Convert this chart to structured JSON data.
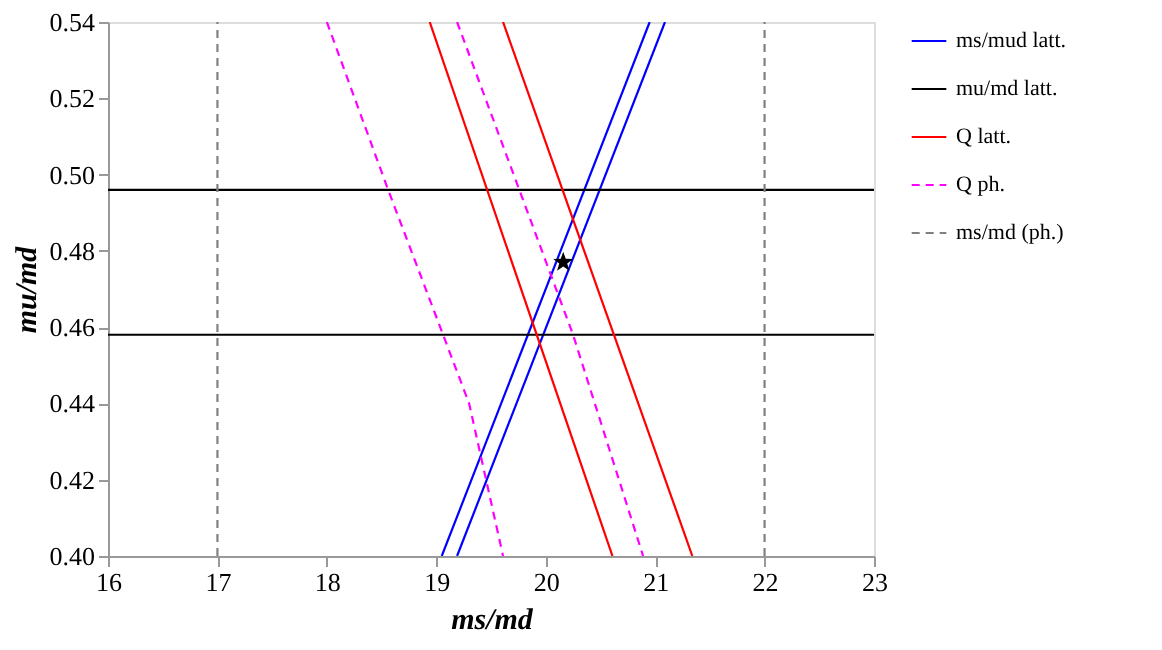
{
  "chart_data": {
    "type": "line",
    "xlabel": "ms/md",
    "ylabel": "mu/md",
    "xlim": [
      16,
      23
    ],
    "ylim": [
      0.4,
      0.54
    ],
    "xticks": [
      16,
      17,
      18,
      19,
      20,
      21,
      22,
      23
    ],
    "yticks": [
      {
        "value": 0.4,
        "label": "0.40"
      },
      {
        "value": 0.42,
        "label": "0.42"
      },
      {
        "value": 0.44,
        "label": "0.44"
      },
      {
        "value": 0.46,
        "label": "0.46"
      },
      {
        "value": 0.48,
        "label": "0.48"
      },
      {
        "value": 0.5,
        "label": "0.50"
      },
      {
        "value": 0.52,
        "label": "0.52"
      },
      {
        "value": 0.54,
        "label": "0.54"
      }
    ],
    "grid": false,
    "legend": "right",
    "line_style": "solid",
    "series": [
      {
        "name": "ms/mud latt.",
        "color": "#0000ff",
        "x": [
          19.05,
          20.95
        ],
        "values": [
          0.4,
          0.54
        ]
      },
      {
        "color": "#0000ff",
        "x": [
          19.19,
          21.09
        ],
        "values": [
          0.4,
          0.54
        ]
      },
      {
        "name": "mu/md latt.",
        "color": "#000000",
        "x": [
          16,
          23
        ],
        "values": [
          0.496,
          0.496
        ]
      },
      {
        "color": "#000000",
        "x": [
          16,
          23
        ],
        "values": [
          0.458,
          0.458
        ]
      },
      {
        "name": "Q latt.",
        "color": "#ff0000",
        "x": [
          18.94,
          20.61
        ],
        "values": [
          0.54,
          0.4
        ]
      },
      {
        "color": "#ff0000",
        "x": [
          19.61,
          21.34
        ],
        "values": [
          0.54,
          0.4
        ]
      },
      {
        "name": "Q ph.",
        "color": "#ff00ff",
        "line_style": "dashed",
        "x": [
          18.0,
          18.56,
          19.3,
          19.61
        ],
        "values": [
          0.54,
          0.496,
          0.44,
          0.4
        ]
      },
      {
        "color": "#ff00ff",
        "line_style": "dashed",
        "x": [
          19.19,
          20.25,
          20.89
        ],
        "values": [
          0.54,
          0.458,
          0.4
        ]
      },
      {
        "name": "ms/md (ph.)",
        "color": "#808080",
        "line_style": "dashed",
        "x": [
          17,
          17
        ],
        "values": [
          0.4,
          0.54
        ]
      },
      {
        "color": "#808080",
        "line_style": "dashed",
        "x": [
          22,
          22
        ],
        "values": [
          0.4,
          0.54
        ]
      },
      {
        "type": "scatter",
        "marker": "star",
        "color": "#000000",
        "x": [
          20.16
        ],
        "values": [
          0.477
        ]
      }
    ]
  }
}
